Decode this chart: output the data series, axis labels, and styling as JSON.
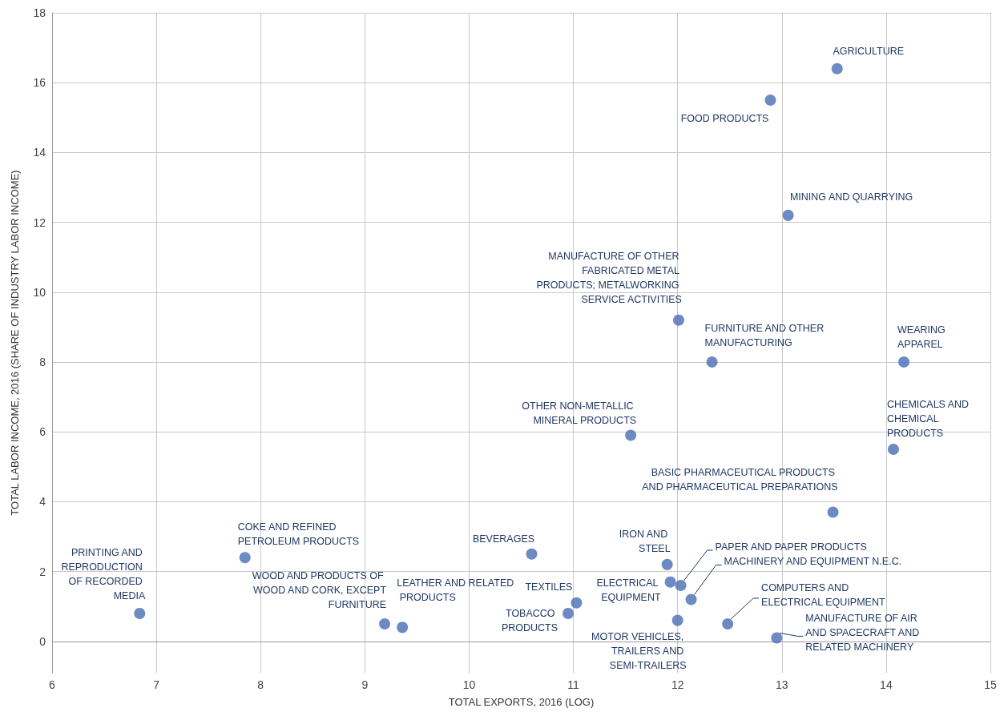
{
  "chart_data": {
    "type": "scatter",
    "xlabel": "TOTAL EXPORTS, 2016 (LOG)",
    "ylabel": "TOTAL LABOR INCOME, 2016 (SHARE OF INDUSTRY LABOR INCOME)",
    "x": [
      13.53,
      12.89,
      13.06,
      12.01,
      12.33,
      14.17,
      14.07,
      11.55,
      13.49,
      7.85,
      10.6,
      11.9,
      12.03,
      11.93,
      12.13,
      11.03,
      10.95,
      12.0,
      12.48,
      12.95,
      6.84,
      9.19,
      9.36
    ],
    "series": [
      {
        "color": "#4a6db3",
        "values": [
          16.4,
          15.5,
          12.2,
          9.2,
          8.0,
          8.0,
          5.5,
          5.9,
          3.7,
          2.4,
          2.5,
          2.2,
          1.6,
          1.7,
          1.2,
          1.1,
          0.8,
          0.6,
          0.5,
          0.1,
          0.8,
          0.5,
          0.4
        ]
      }
    ],
    "annotations": [
      {
        "text": "AGRICULTURE",
        "x": 13.53,
        "y": 16.4
      },
      {
        "text": "FOOD PRODUCTS",
        "x": 12.89,
        "y": 15.5
      },
      {
        "text": "MINING AND QUARRYING",
        "x": 13.06,
        "y": 12.2
      },
      {
        "text": "MANUFACTURE OF OTHER FABRICATED METAL PRODUCTS; METALWORKING SERVICE ACTIVITIES",
        "x": 12.01,
        "y": 9.2
      },
      {
        "text": "FURNITURE AND OTHER MANUFACTURING",
        "x": 12.33,
        "y": 8.0
      },
      {
        "text": "WEARING APPAREL",
        "x": 14.17,
        "y": 8.0
      },
      {
        "text": "CHEMICALS AND CHEMICAL PRODUCTS",
        "x": 14.07,
        "y": 5.5
      },
      {
        "text": "OTHER NON-METALLIC MINERAL PRODUCTS",
        "x": 11.55,
        "y": 5.9
      },
      {
        "text": "BASIC PHARMACEUTICAL PRODUCTS AND PHARMACEUTICAL PREPARATIONS",
        "x": 13.49,
        "y": 3.7
      },
      {
        "text": "COKE AND REFINED PETROLEUM PRODUCTS",
        "x": 7.85,
        "y": 2.4
      },
      {
        "text": "BEVERAGES",
        "x": 10.6,
        "y": 2.5
      },
      {
        "text": "IRON AND STEEL",
        "x": 11.9,
        "y": 2.2
      },
      {
        "text": "PAPER AND PAPER PRODUCTS",
        "x": 12.03,
        "y": 1.6
      },
      {
        "text": "ELECTRICAL EQUIPMENT",
        "x": 11.93,
        "y": 1.7
      },
      {
        "text": "MACHINERY AND EQUIPMENT N.E.C.",
        "x": 12.13,
        "y": 1.2
      },
      {
        "text": "TEXTILES",
        "x": 11.03,
        "y": 1.1
      },
      {
        "text": "TOBACCO PRODUCTS",
        "x": 10.95,
        "y": 0.8
      },
      {
        "text": "MOTOR VEHICLES, TRAILERS AND SEMI-TRAILERS",
        "x": 12.0,
        "y": 0.6
      },
      {
        "text": "COMPUTERS AND ELECTRICAL EQUIPMENT",
        "x": 12.48,
        "y": 0.5
      },
      {
        "text": "MANUFACTURE OF AIR AND SPACECRAFT AND RELATED MACHINERY",
        "x": 12.95,
        "y": 0.1
      },
      {
        "text": "PRINTING AND REPRODUCTION OF RECORDED MEDIA",
        "x": 6.84,
        "y": 0.8
      },
      {
        "text": "WOOD AND PRODUCTS OF WOOD AND CORK, EXCEPT FURNITURE",
        "x": 9.19,
        "y": 0.5
      },
      {
        "text": "LEATHER AND RELATED PRODUCTS",
        "x": 9.36,
        "y": 0.4
      }
    ],
    "xlim": [
      6,
      15
    ],
    "xticks": [
      6,
      7,
      8,
      9,
      10,
      11,
      12,
      13,
      14,
      15
    ],
    "ylim": [
      -0.9,
      18
    ],
    "yticks": [
      0,
      2,
      4,
      6,
      8,
      10,
      12,
      14,
      16,
      18
    ],
    "grid": true,
    "marker": "circle"
  }
}
